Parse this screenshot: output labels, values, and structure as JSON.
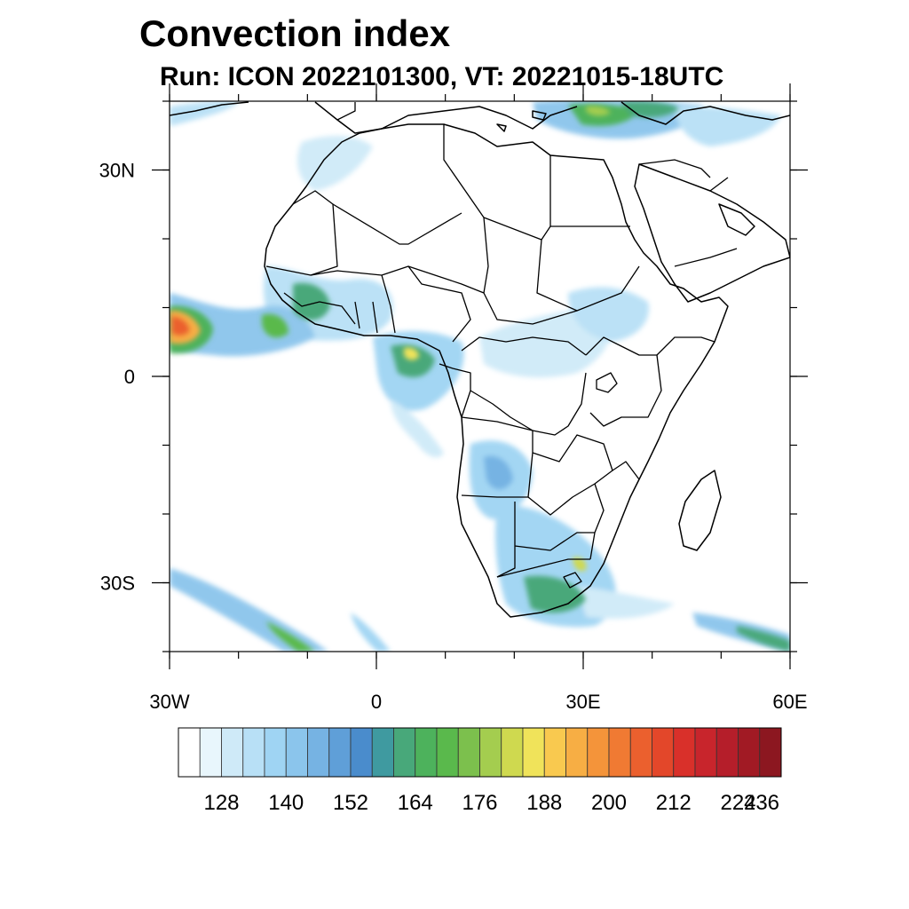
{
  "title": "Convection index",
  "subtitle": "Run: ICON 2022101300,  VT: 20221015-18UTC",
  "map": {
    "projection": "cylindrical-equidistant",
    "lon_range": [
      -30,
      60
    ],
    "lat_range": [
      -40,
      40
    ],
    "lon_ticks": [
      {
        "lon": -30,
        "label": "30W"
      },
      {
        "lon": 0,
        "label": "0"
      },
      {
        "lon": 30,
        "label": "30E"
      },
      {
        "lon": 60,
        "label": "60E"
      }
    ],
    "lat_ticks": [
      {
        "lat": 30,
        "label": "30N"
      },
      {
        "lat": 0,
        "label": "0"
      },
      {
        "lat": -30,
        "label": "30S"
      }
    ],
    "minor_lon_step": 10,
    "minor_lat_step": 10,
    "coastline_color": "#000000",
    "ocean_color": "#ffffff"
  },
  "colorbar": {
    "orientation": "horizontal",
    "colors": [
      "#ffffff",
      "#e8f6fc",
      "#cfeaf8",
      "#b8e0f6",
      "#9fd4f3",
      "#8bc5ec",
      "#76b3e3",
      "#5f9fd8",
      "#4a8ccc",
      "#3f9aa0",
      "#48a87a",
      "#4db25c",
      "#5ab94c",
      "#7cc04d",
      "#a4cd4f",
      "#cfd94f",
      "#f0e35a",
      "#f9c94f",
      "#f7ae44",
      "#f4943a",
      "#f07a33",
      "#eb602e",
      "#e3472a",
      "#d9302a",
      "#c8252c",
      "#b51e2a",
      "#a11a24",
      "#8c1720"
    ],
    "labels": [
      {
        "boundary": 2,
        "text": "128"
      },
      {
        "boundary": 5,
        "text": "140"
      },
      {
        "boundary": 8,
        "text": "152"
      },
      {
        "boundary": 11,
        "text": "164"
      },
      {
        "boundary": 14,
        "text": "176"
      },
      {
        "boundary": 17,
        "text": "188"
      },
      {
        "boundary": 20,
        "text": "200"
      },
      {
        "boundary": 23,
        "text": "212"
      },
      {
        "boundary": 26,
        "text": "224"
      },
      {
        "boundary": 29,
        "text": "236"
      }
    ]
  }
}
